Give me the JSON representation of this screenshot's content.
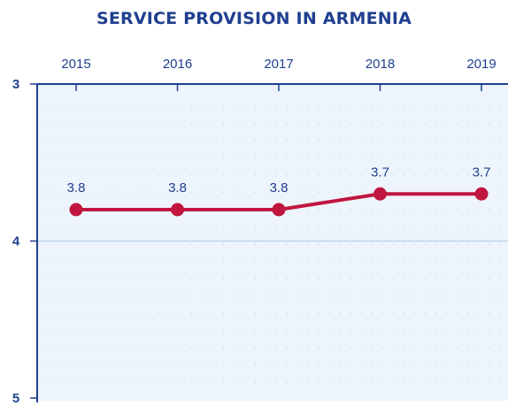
{
  "title": "SERVICE PROVISION IN ARMENIA",
  "colors": {
    "title": "#1f3f8f",
    "axis": "#1f3f8f",
    "plot_background": "#eef4fb",
    "line": "#c0163f",
    "marker": "#c0163f",
    "gridline": "#b8d3ea",
    "dotted_grid": "#b7c6d6"
  },
  "chart_data": {
    "type": "line",
    "title": "SERVICE PROVISION IN ARMENIA",
    "x_axis_position": "top",
    "y_inverted": true,
    "categories": [
      "2015",
      "2016",
      "2017",
      "2018",
      "2019"
    ],
    "series": [
      {
        "values": [
          3.8,
          3.8,
          3.8,
          3.7,
          3.7
        ]
      }
    ],
    "data_labels": [
      "3.8",
      "3.8",
      "3.8",
      "3.7",
      "3.7"
    ],
    "ylim": [
      3,
      5
    ],
    "yticks": [
      "3",
      "4",
      "5"
    ],
    "xlabel": "",
    "ylabel": "",
    "grid": true
  }
}
